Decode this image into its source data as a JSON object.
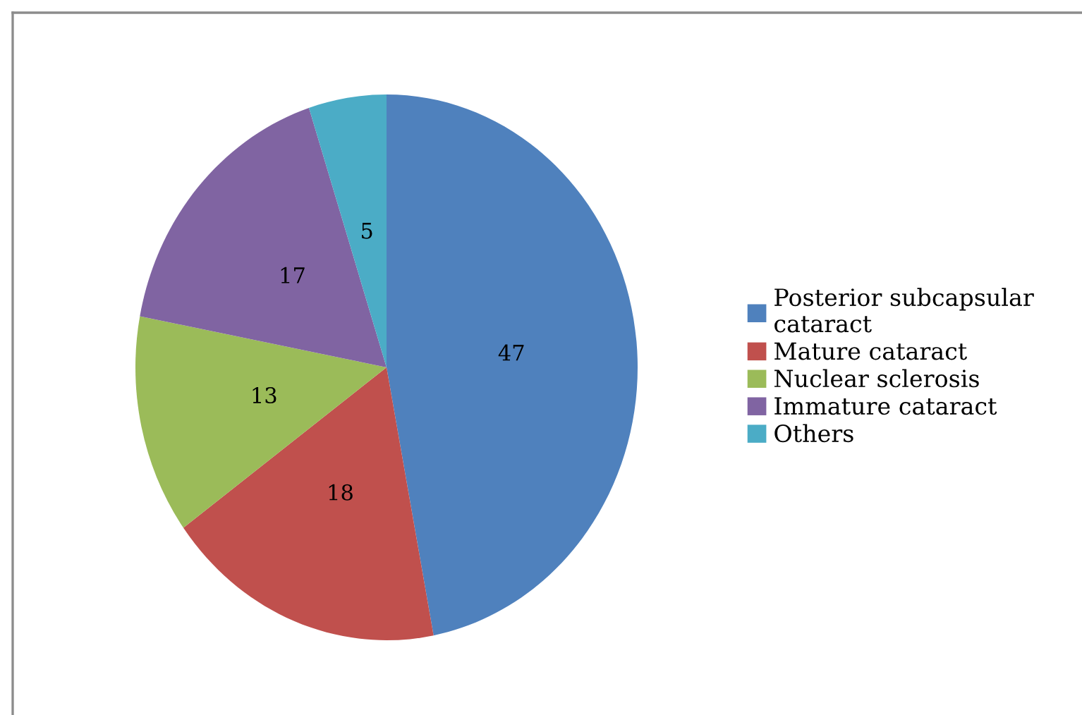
{
  "chart_data": {
    "type": "pie",
    "categories": [
      "Posterior subcapsular cataract",
      "Mature cataract",
      "Nuclear sclerosis",
      "Immature cataract",
      "Others"
    ],
    "values": [
      47,
      18,
      13,
      17,
      5
    ],
    "colors": [
      "#4f81bd",
      "#c0504d",
      "#9bbb59",
      "#8064a2",
      "#4bacc6"
    ],
    "data_labels": true,
    "legend": "right"
  }
}
